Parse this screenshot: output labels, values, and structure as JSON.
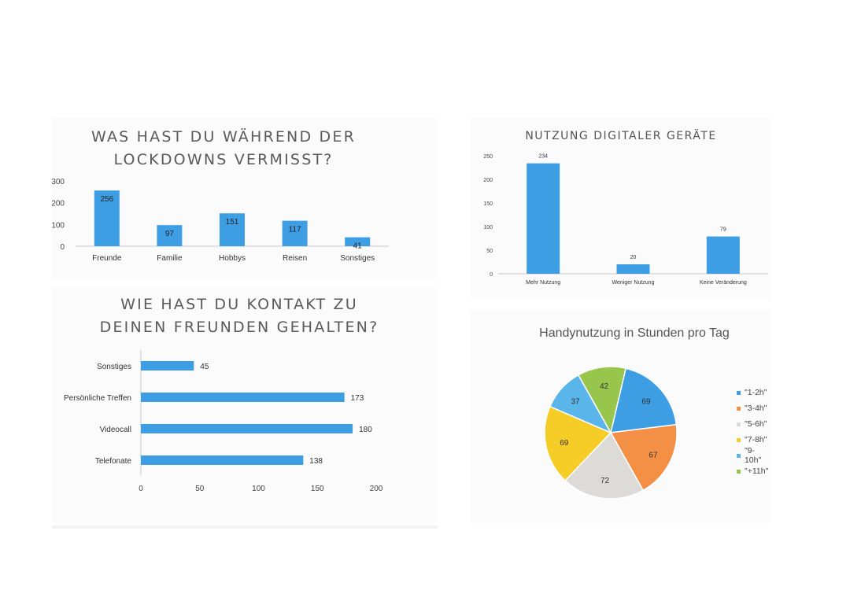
{
  "colors": {
    "bar": "#3d9ee4",
    "axis": "#c7c7c7"
  },
  "chart_data": [
    {
      "id": "missed",
      "type": "bar",
      "title": "WAS HAST DU WÄHREND DER\nLOCKDOWNS VERMISST?",
      "categories": [
        "Freunde",
        "Familie",
        "Hobbys",
        "Reisen",
        "Sonstiges"
      ],
      "values": [
        256,
        97,
        151,
        117,
        41
      ],
      "ytick_labels": [
        "0",
        "100",
        "200",
        "300"
      ],
      "ylim": [
        0,
        300
      ],
      "grid": false
    },
    {
      "id": "contact",
      "type": "bar",
      "orientation": "horizontal",
      "title": "WIE HAST DU KONTAKT ZU\nDEINEN FREUNDEN GEHALTEN?",
      "categories": [
        "Sonstiges",
        "Persönliche Treffen",
        "Videocall",
        "Telefonate"
      ],
      "values": [
        45,
        173,
        180,
        138
      ],
      "xtick_labels": [
        "0",
        "50",
        "100",
        "150",
        "200"
      ],
      "xlim": [
        0,
        200
      ],
      "grid": false
    },
    {
      "id": "devices",
      "type": "bar",
      "title": "NUTZUNG DIGITALER GERÄTE",
      "categories": [
        "Mehr Nutzung",
        "Weniger Nutzung",
        "Keine Veränderung"
      ],
      "values": [
        234,
        20,
        79
      ],
      "ytick_labels": [
        "0",
        "50",
        "100",
        "150",
        "200",
        "250"
      ],
      "ylim": [
        0,
        250
      ],
      "grid": false
    },
    {
      "id": "phone",
      "type": "pie",
      "title": "Handynutzung in Stunden pro Tag",
      "legend_position": "right",
      "slices": [
        {
          "label": "\"1-2h\"",
          "value": 69,
          "value_label": "69",
          "color": "#3d9ee4"
        },
        {
          "label": "\"3-4h\"",
          "value": 67,
          "value_label": "67",
          "color": "#f39046"
        },
        {
          "label": "\"5-6h\"",
          "value": 72,
          "value_label": "72",
          "color": "#dddbd8"
        },
        {
          "label": "\"7-8h\"",
          "value": 69,
          "value_label": "69",
          "color": "#f6cc26"
        },
        {
          "label": "\"9-10h\"",
          "value": 37,
          "value_label": "37",
          "color": "#5ab6ea"
        },
        {
          "label": "\"+11h\"",
          "value": 42,
          "value_label": "42",
          "color": "#98c54c"
        }
      ]
    }
  ]
}
